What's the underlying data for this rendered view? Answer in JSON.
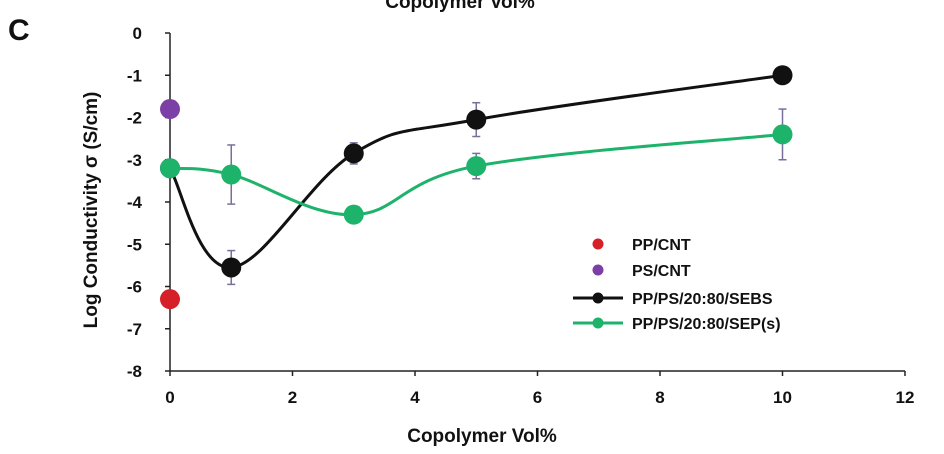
{
  "panel_letter": "C",
  "chart_data": {
    "type": "line",
    "title": "Copolymer Vol%",
    "xlabel": "Copolymer Vol%",
    "ylabel": "Log Conductivity σ (S/cm)",
    "xlim": [
      0,
      12
    ],
    "ylim": [
      -8,
      0
    ],
    "xticks": [
      0,
      2,
      4,
      6,
      8,
      10,
      12
    ],
    "yticks": [
      0,
      -1,
      -2,
      -3,
      -4,
      -5,
      -6,
      -7,
      -8
    ],
    "grid": false,
    "legend_position": "lower-right",
    "series": [
      {
        "name": "PP/CNT",
        "type": "scatter",
        "color": "#d62027",
        "points": [
          {
            "x": 0,
            "y": -6.3
          }
        ]
      },
      {
        "name": "PS/CNT",
        "type": "scatter",
        "color": "#7b3fa6",
        "points": [
          {
            "x": 0,
            "y": -1.8
          }
        ]
      },
      {
        "name": "PP/PS/20:80/SEBS",
        "type": "line",
        "color": "#111111",
        "points": [
          {
            "x": 0,
            "y": -3.2,
            "err": 0
          },
          {
            "x": 1,
            "y": -5.55,
            "err": 0.4
          },
          {
            "x": 3,
            "y": -2.85,
            "err": 0.25
          },
          {
            "x": 5,
            "y": -2.05,
            "err": 0.4
          },
          {
            "x": 10,
            "y": -1.0,
            "err": 0
          }
        ]
      },
      {
        "name": "PP/PS/20:80/SEP(s)",
        "type": "line",
        "color": "#1db36b",
        "points": [
          {
            "x": 0,
            "y": -3.2,
            "err": 0
          },
          {
            "x": 1,
            "y": -3.35,
            "err": 0.7
          },
          {
            "x": 3,
            "y": -4.3,
            "err": 0
          },
          {
            "x": 5,
            "y": -3.15,
            "err": 0.3
          },
          {
            "x": 10,
            "y": -2.4,
            "err": 0.6
          }
        ]
      }
    ]
  }
}
